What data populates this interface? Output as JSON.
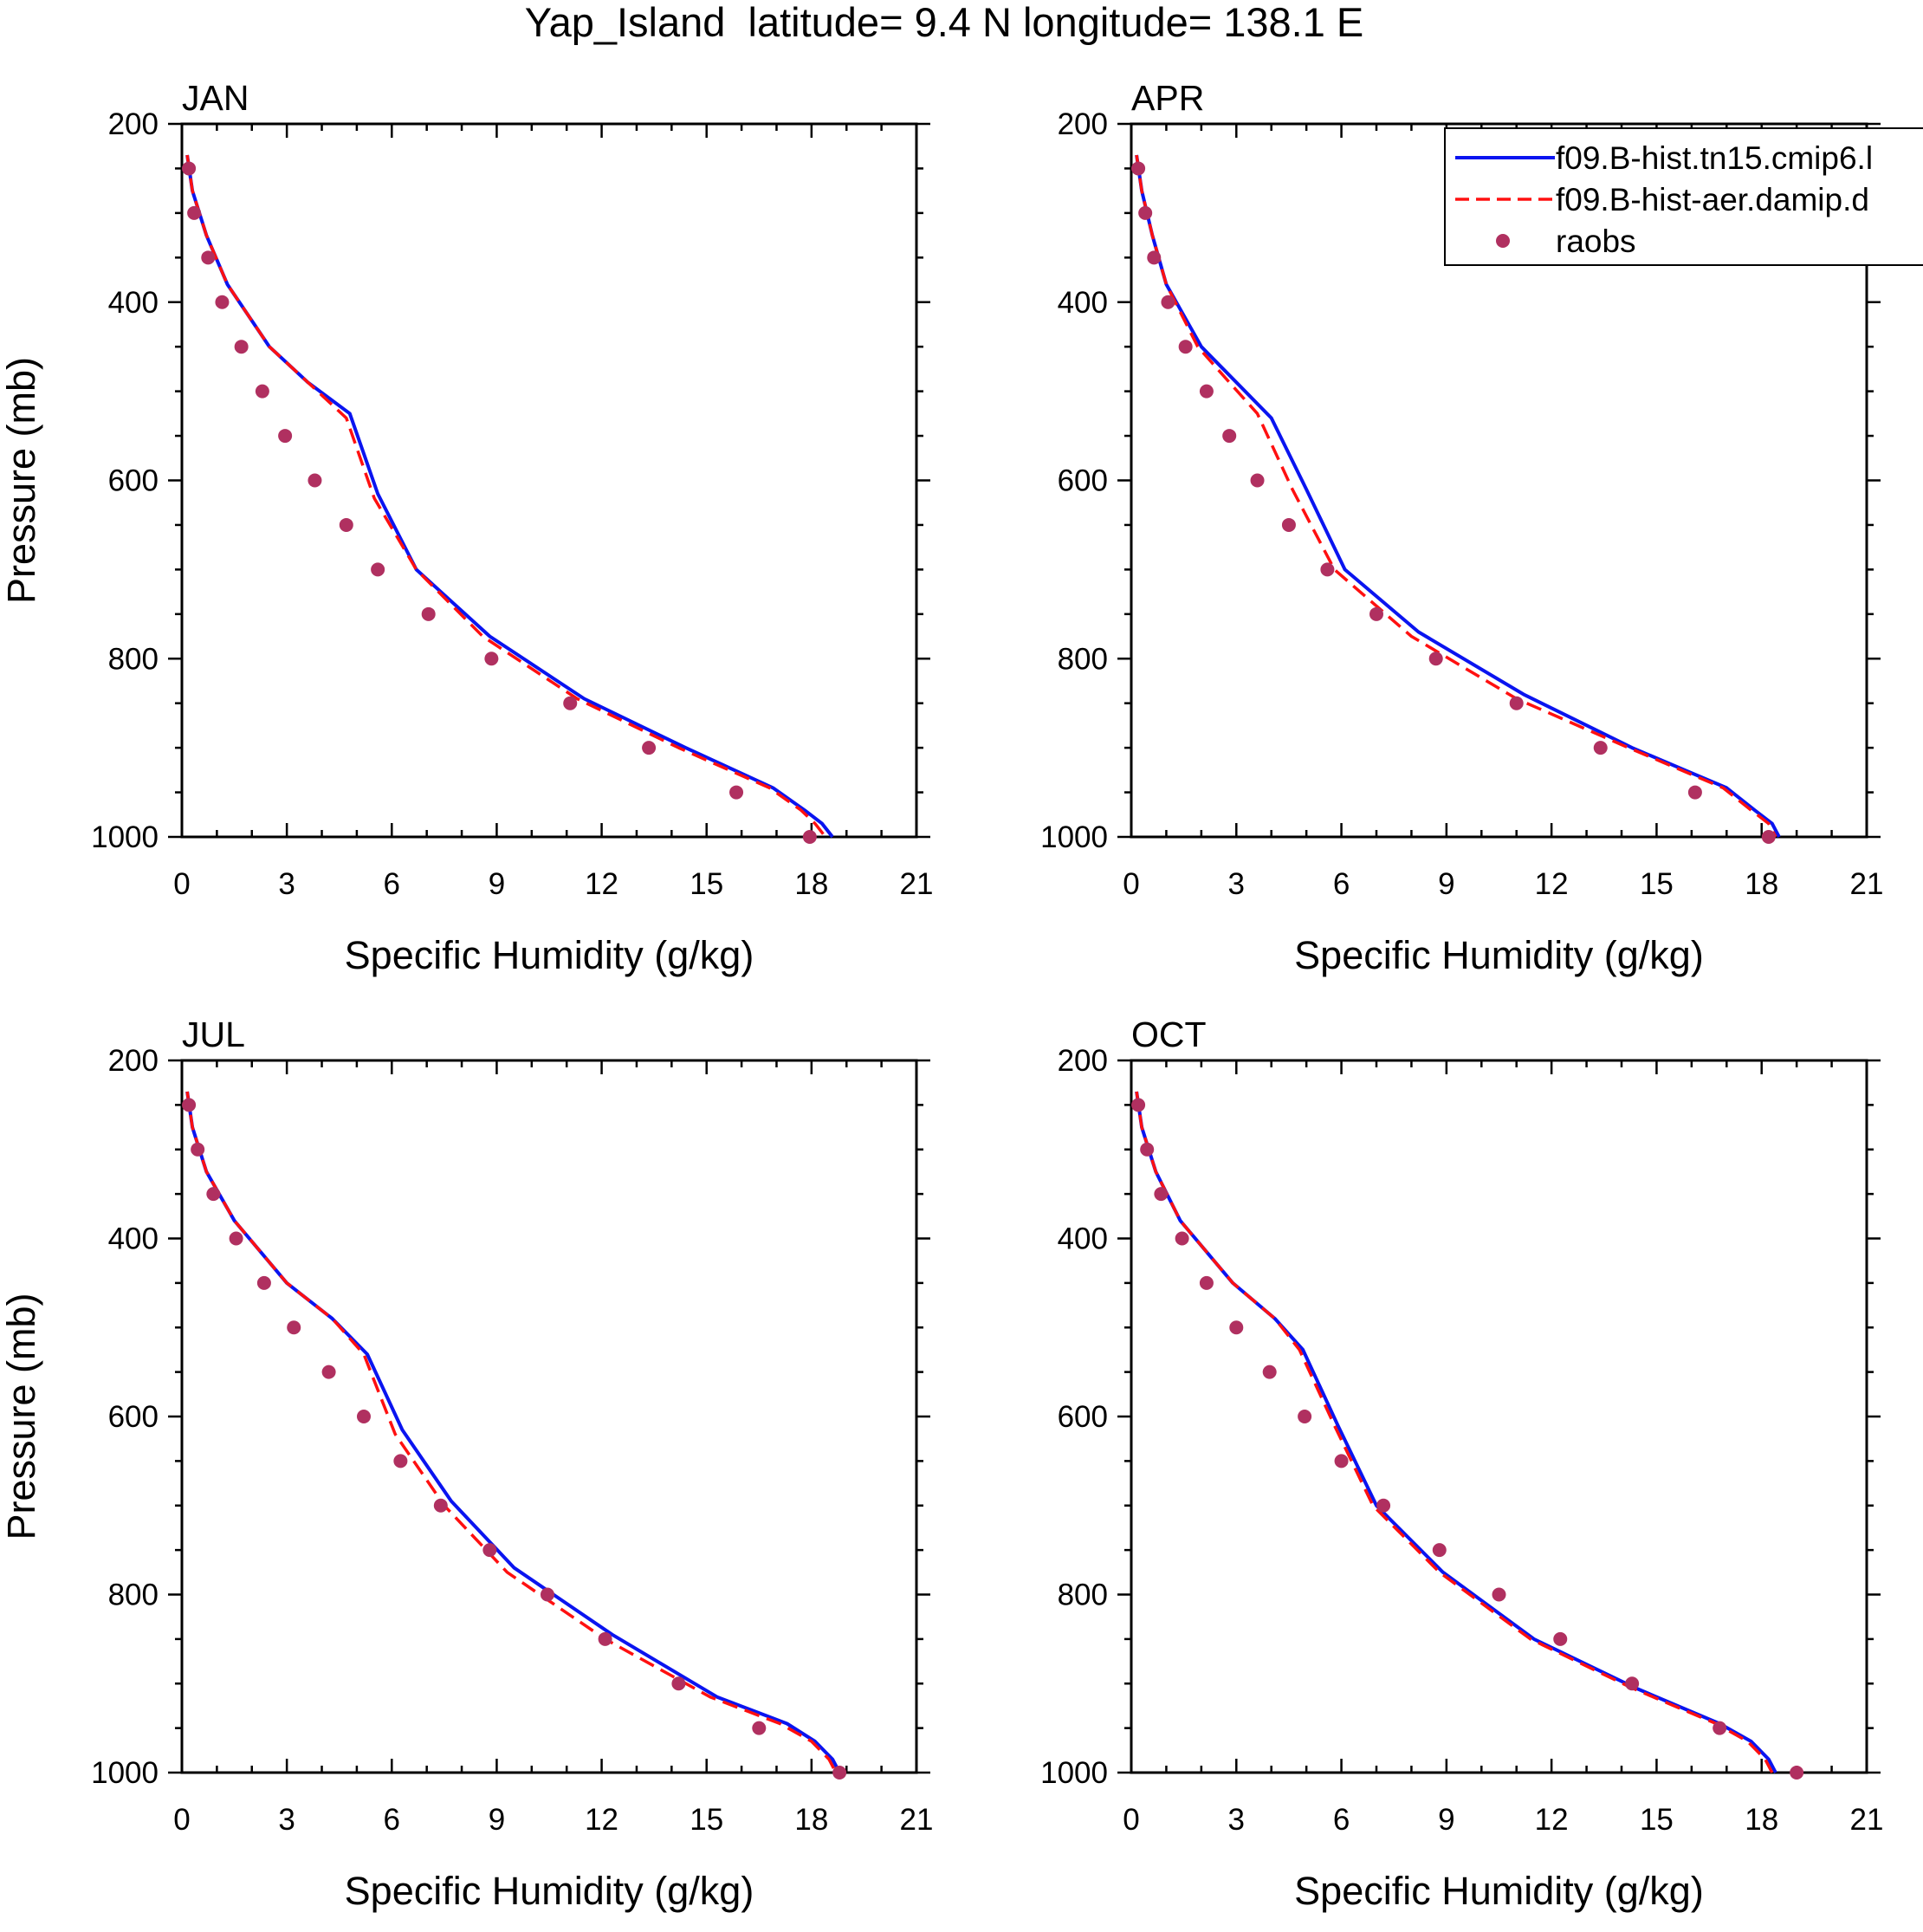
{
  "figure_title": "Yap_Island  latitude= 9.4 N longitude= 138.1 E",
  "colors": {
    "model_a": "#0a14f0",
    "model_b": "#ff1010",
    "obs": "#b03060",
    "axis": "#000000"
  },
  "chart_data": [
    {
      "type": "line",
      "title": "JAN",
      "xlabel": "Specific Humidity (g/kg)",
      "ylabel": "Pressure (mb)",
      "xlim": [
        0,
        21
      ],
      "ylim": [
        200,
        1000
      ],
      "y_inverted": true,
      "xticks": [
        0,
        3,
        6,
        9,
        12,
        15,
        18,
        21
      ],
      "yticks": [
        200,
        400,
        600,
        800,
        1000
      ],
      "series": [
        {
          "name": "f09.B-hist.tn15.cmip6.l",
          "style": "solid",
          "x": [
            0.15,
            0.3,
            0.7,
            1.3,
            2.5,
            3.6,
            4.8,
            5.6,
            6.7,
            8.8,
            11.5,
            14.4,
            16.9,
            17.8,
            18.3,
            18.6
          ],
          "y": [
            235,
            275,
            325,
            380,
            450,
            490,
            525,
            615,
            700,
            775,
            845,
            900,
            945,
            970,
            985,
            1000
          ]
        },
        {
          "name": "f09.B-hist-aer.damip.d",
          "style": "dashed",
          "x": [
            0.15,
            0.3,
            0.7,
            1.3,
            2.5,
            3.6,
            4.7,
            5.5,
            6.7,
            8.6,
            11.3,
            14.2,
            16.8,
            17.7,
            18.1,
            18.4
          ],
          "y": [
            235,
            275,
            325,
            380,
            450,
            490,
            530,
            620,
            700,
            775,
            845,
            900,
            945,
            970,
            985,
            1000
          ]
        },
        {
          "name": "raobs",
          "style": "markers",
          "x": [
            0.2,
            0.35,
            0.75,
            1.15,
            1.7,
            2.3,
            2.95,
            3.8,
            4.7,
            5.6,
            7.05,
            8.85,
            11.1,
            13.35,
            15.85,
            17.95
          ],
          "y": [
            250,
            300,
            350,
            400,
            450,
            500,
            550,
            600,
            650,
            700,
            750,
            800,
            850,
            900,
            950,
            1000
          ]
        }
      ]
    },
    {
      "type": "line",
      "title": "APR",
      "xlabel": "Specific Humidity (g/kg)",
      "ylabel": "",
      "xlim": [
        0,
        21
      ],
      "ylim": [
        200,
        1000
      ],
      "y_inverted": true,
      "xticks": [
        0,
        3,
        6,
        9,
        12,
        15,
        18,
        21
      ],
      "yticks": [
        200,
        400,
        600,
        800,
        1000
      ],
      "series": [
        {
          "name": "f09.B-hist.tn15.cmip6.l",
          "style": "solid",
          "x": [
            0.15,
            0.3,
            0.6,
            1.0,
            2.0,
            3.0,
            4.0,
            5.0,
            6.1,
            8.2,
            11.2,
            14.3,
            17.0,
            17.8,
            18.3,
            18.5
          ],
          "y": [
            235,
            275,
            325,
            380,
            450,
            490,
            530,
            610,
            700,
            770,
            840,
            900,
            945,
            970,
            985,
            1000
          ]
        },
        {
          "name": "f09.B-hist-aer.damip.d",
          "style": "dashed",
          "x": [
            0.15,
            0.3,
            0.6,
            1.0,
            1.9,
            2.8,
            3.6,
            4.6,
            5.8,
            8.0,
            11.0,
            14.2,
            16.9,
            17.7,
            18.2,
            18.4
          ],
          "y": [
            235,
            275,
            325,
            380,
            450,
            490,
            525,
            610,
            700,
            775,
            845,
            900,
            945,
            970,
            985,
            1000
          ]
        },
        {
          "name": "raobs",
          "style": "markers",
          "x": [
            0.2,
            0.4,
            0.65,
            1.05,
            1.55,
            2.15,
            2.8,
            3.6,
            4.5,
            5.6,
            7.0,
            8.7,
            11.0,
            13.4,
            16.1,
            18.2
          ],
          "y": [
            250,
            300,
            350,
            400,
            450,
            500,
            550,
            600,
            650,
            700,
            750,
            800,
            850,
            900,
            950,
            1000
          ]
        }
      ],
      "legend": {
        "position": "top-right",
        "entries": [
          "f09.B-hist.tn15.cmip6.l",
          "f09.B-hist-aer.damip.d",
          "raobs"
        ]
      }
    },
    {
      "type": "line",
      "title": "JUL",
      "xlabel": "Specific Humidity (g/kg)",
      "ylabel": "Pressure (mb)",
      "xlim": [
        0,
        21
      ],
      "ylim": [
        200,
        1000
      ],
      "y_inverted": true,
      "xticks": [
        0,
        3,
        6,
        9,
        12,
        15,
        18,
        21
      ],
      "yticks": [
        200,
        400,
        600,
        800,
        1000
      ],
      "series": [
        {
          "name": "f09.B-hist.tn15.cmip6.l",
          "style": "solid",
          "x": [
            0.15,
            0.3,
            0.7,
            1.5,
            3.0,
            4.3,
            5.3,
            6.3,
            7.7,
            9.5,
            12.3,
            15.3,
            17.3,
            18.1,
            18.6,
            18.8
          ],
          "y": [
            235,
            275,
            325,
            380,
            450,
            490,
            530,
            615,
            695,
            770,
            845,
            915,
            945,
            965,
            985,
            1000
          ]
        },
        {
          "name": "f09.B-hist-aer.damip.d",
          "style": "dashed",
          "x": [
            0.15,
            0.3,
            0.7,
            1.5,
            3.0,
            4.3,
            5.2,
            6.1,
            7.5,
            9.3,
            12.1,
            15.1,
            17.1,
            18.0,
            18.5,
            18.7
          ],
          "y": [
            235,
            275,
            325,
            380,
            450,
            490,
            530,
            620,
            700,
            775,
            850,
            915,
            945,
            965,
            985,
            1000
          ]
        },
        {
          "name": "raobs",
          "style": "markers",
          "x": [
            0.2,
            0.45,
            0.9,
            1.55,
            2.35,
            3.2,
            4.2,
            5.2,
            6.25,
            7.4,
            8.8,
            10.45,
            12.1,
            14.2,
            16.5,
            18.8
          ],
          "y": [
            250,
            300,
            350,
            400,
            450,
            500,
            550,
            600,
            650,
            700,
            750,
            800,
            850,
            900,
            950,
            1000
          ]
        }
      ]
    },
    {
      "type": "line",
      "title": "OCT",
      "xlabel": "Specific Humidity (g/kg)",
      "ylabel": "",
      "xlim": [
        0,
        21
      ],
      "ylim": [
        200,
        1000
      ],
      "y_inverted": true,
      "xticks": [
        0,
        3,
        6,
        9,
        12,
        15,
        18,
        21
      ],
      "yticks": [
        200,
        400,
        600,
        800,
        1000
      ],
      "series": [
        {
          "name": "f09.B-hist.tn15.cmip6.l",
          "style": "solid",
          "x": [
            0.15,
            0.3,
            0.7,
            1.4,
            2.9,
            4.1,
            4.9,
            5.9,
            7.0,
            8.9,
            11.5,
            14.4,
            16.8,
            17.7,
            18.2,
            18.4
          ],
          "y": [
            235,
            275,
            325,
            380,
            450,
            490,
            525,
            610,
            700,
            775,
            850,
            905,
            945,
            965,
            985,
            1000
          ]
        },
        {
          "name": "f09.B-hist-aer.damip.d",
          "style": "dashed",
          "x": [
            0.15,
            0.3,
            0.7,
            1.4,
            2.9,
            4.1,
            4.8,
            5.8,
            6.9,
            8.8,
            11.4,
            14.3,
            16.7,
            17.6,
            18.1,
            18.3
          ],
          "y": [
            235,
            275,
            325,
            380,
            450,
            490,
            525,
            610,
            700,
            775,
            850,
            905,
            945,
            965,
            985,
            1000
          ]
        },
        {
          "name": "raobs",
          "style": "markers",
          "x": [
            0.2,
            0.45,
            0.85,
            1.45,
            2.15,
            3.0,
            3.95,
            4.95,
            6.0,
            7.2,
            8.8,
            10.5,
            12.25,
            14.3,
            16.8,
            19.0
          ],
          "y": [
            250,
            300,
            350,
            400,
            450,
            500,
            550,
            600,
            650,
            700,
            750,
            800,
            850,
            900,
            950,
            1000
          ]
        }
      ]
    }
  ]
}
